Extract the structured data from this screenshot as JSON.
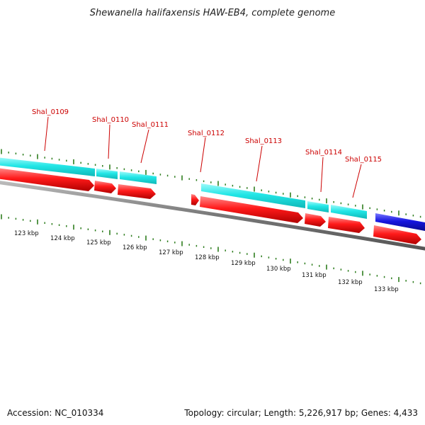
{
  "header": {
    "title": "Shewanella halifaxensis HAW-EB4, complete genome"
  },
  "footer": {
    "accession": "Accession: NC_010334",
    "summary": "Topology: circular; Length: 5,226,917 bp; Genes: 4,433"
  },
  "genes": [
    {
      "id": "Shal_0109"
    },
    {
      "id": "Shal_0110"
    },
    {
      "id": "Shal_0111"
    },
    {
      "id": "Shal_0112"
    },
    {
      "id": "Shal_0113"
    },
    {
      "id": "Shal_0114"
    },
    {
      "id": "Shal_0115"
    }
  ],
  "scale": {
    "ticks": [
      "123 kbp",
      "124 kbp",
      "125 kbp",
      "126 kbp",
      "127 kbp",
      "128 kbp",
      "129 kbp",
      "130 kbp",
      "131 kbp",
      "132 kbp",
      "133 kbp"
    ]
  },
  "colors": {
    "gene_label": "#cc0000",
    "tick_green": "#2e7d1e",
    "cds_forward_cyan": "#19e6e6",
    "cds_forward_red": "#ee1111",
    "cds_blue": "#1a1ad6",
    "backbone": "#777777"
  }
}
